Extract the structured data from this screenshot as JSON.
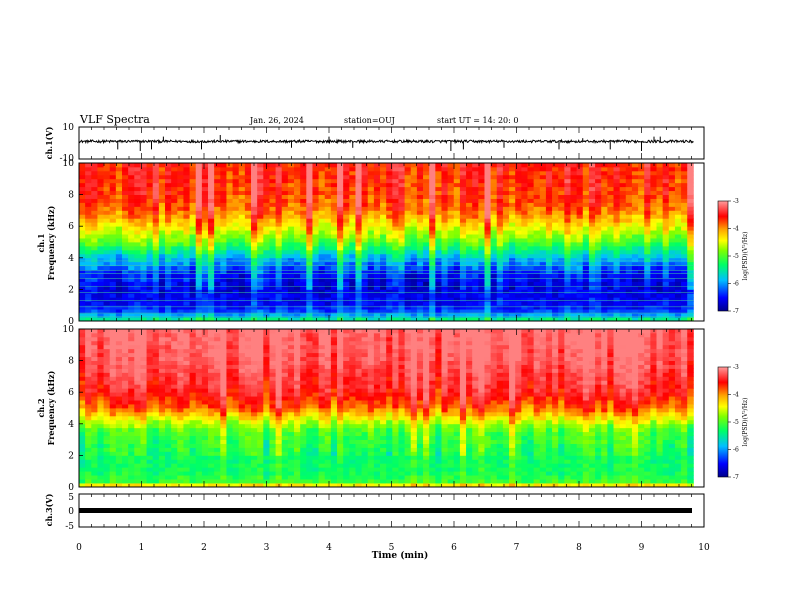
{
  "header": {
    "title": "VLF Spectra",
    "date": "Jan. 26, 2024",
    "station": "station=OUJ",
    "start": "start UT =  14: 20: 0"
  },
  "colors": {
    "spectrum_palette": [
      "#00008b",
      "#0000ff",
      "#00bfff",
      "#00ff66",
      "#7fff00",
      "#ffff00",
      "#ffa500",
      "#ff0000",
      "#ff8080"
    ]
  },
  "chart_data": [
    {
      "type": "line",
      "name": "ch1-waveform",
      "ylabel": "ch.1(V)",
      "ylim": [
        -10,
        10
      ],
      "yticks": [
        "10",
        "-10"
      ],
      "baseline": 1,
      "spikes": [
        {
          "t": 0.62,
          "v": -4
        },
        {
          "t": 0.98,
          "v": -5
        },
        {
          "t": 1.16,
          "v": -4
        },
        {
          "t": 1.35,
          "v": 4
        },
        {
          "t": 1.96,
          "v": -4
        },
        {
          "t": 2.26,
          "v": 5
        },
        {
          "t": 3.4,
          "v": -3
        },
        {
          "t": 4.0,
          "v": 4
        },
        {
          "t": 4.38,
          "v": -3
        },
        {
          "t": 5.95,
          "v": -5
        },
        {
          "t": 6.15,
          "v": -4
        },
        {
          "t": 6.8,
          "v": -3
        },
        {
          "t": 7.68,
          "v": -4
        },
        {
          "t": 8.06,
          "v": 3
        },
        {
          "t": 8.5,
          "v": -4
        },
        {
          "t": 9.0,
          "v": -5
        },
        {
          "t": 9.2,
          "v": 4
        },
        {
          "t": 9.3,
          "v": 4
        }
      ]
    },
    {
      "type": "heatmap",
      "name": "ch1-spectrogram",
      "ylabel": "ch.1\nFrequency (kHz)",
      "ylim": [
        0,
        10
      ],
      "yticks": [
        "0",
        "2",
        "4",
        "6",
        "8",
        "10"
      ],
      "tlim": [
        0,
        9.83
      ],
      "color_axis": {
        "label": "log(PSD)(V²/Hz)",
        "range": [
          -7,
          -3
        ],
        "ticks": [
          "-7",
          "-6",
          "-5",
          "-4",
          "-3"
        ]
      },
      "profile": [
        {
          "f": 0.0,
          "v": -5.2
        },
        {
          "f": 0.5,
          "v": -6.2
        },
        {
          "f": 1.0,
          "v": -6.5
        },
        {
          "f": 2.0,
          "v": -6.6
        },
        {
          "f": 3.0,
          "v": -6.4
        },
        {
          "f": 3.6,
          "v": -6.0
        },
        {
          "f": 4.2,
          "v": -5.6
        },
        {
          "f": 5.0,
          "v": -4.9
        },
        {
          "f": 6.0,
          "v": -4.3
        },
        {
          "f": 7.0,
          "v": -3.8
        },
        {
          "f": 8.0,
          "v": -3.6
        },
        {
          "f": 10.0,
          "v": -3.5
        }
      ],
      "tone_lines_khz": [
        0.3,
        0.5,
        0.9,
        1.3,
        1.8,
        2.2,
        2.7,
        3.0,
        3.2,
        3.5,
        3.8
      ]
    },
    {
      "type": "heatmap",
      "name": "ch2-spectrogram",
      "ylabel": "ch.2\nFrequency (kHz)",
      "ylim": [
        0,
        10
      ],
      "yticks": [
        "0",
        "2",
        "4",
        "6",
        "8",
        "10"
      ],
      "tlim": [
        0,
        9.83
      ],
      "color_axis": {
        "label": "log(PSD)(V²/Hz)",
        "range": [
          -7,
          -3
        ],
        "ticks": [
          "-7",
          "-6",
          "-5",
          "-4",
          "-3"
        ]
      },
      "profile": [
        {
          "f": 0.0,
          "v": -3.9
        },
        {
          "f": 0.3,
          "v": -5.1
        },
        {
          "f": 1.0,
          "v": -5.3
        },
        {
          "f": 2.0,
          "v": -5.3
        },
        {
          "f": 3.5,
          "v": -5.1
        },
        {
          "f": 4.2,
          "v": -4.6
        },
        {
          "f": 5.0,
          "v": -3.9
        },
        {
          "f": 6.0,
          "v": -3.5
        },
        {
          "f": 8.0,
          "v": -3.2
        },
        {
          "f": 10.0,
          "v": -3.1
        }
      ]
    },
    {
      "type": "line",
      "name": "ch3-waveform",
      "ylabel": "ch.3(V)",
      "ylim": [
        -5,
        5
      ],
      "yticks": [
        "5",
        "0",
        "-5"
      ],
      "baseline": 0
    }
  ],
  "xaxis": {
    "label": "Time (min)",
    "ticks": [
      "0",
      "1",
      "2",
      "3",
      "4",
      "5",
      "6",
      "7",
      "8",
      "9",
      "10"
    ],
    "range": [
      0,
      10
    ]
  }
}
